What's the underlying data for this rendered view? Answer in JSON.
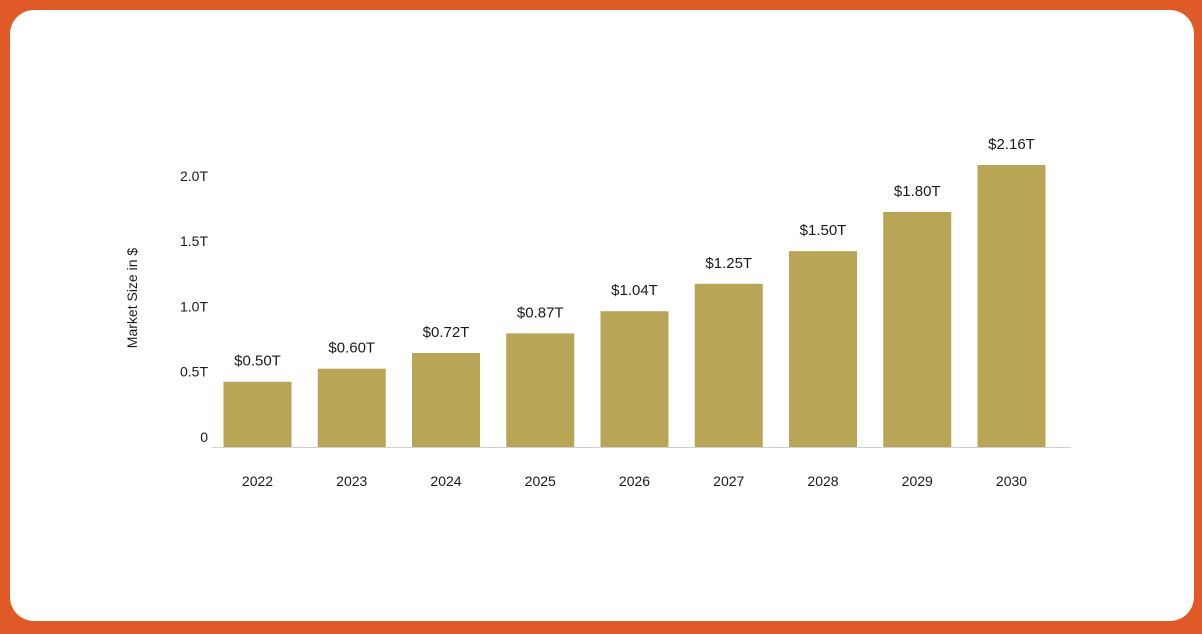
{
  "chart_data": {
    "type": "bar",
    "ylabel": "Market Size in $",
    "xlabel": "",
    "categories": [
      "2022",
      "2023",
      "2024",
      "2025",
      "2026",
      "2027",
      "2028",
      "2029",
      "2030"
    ],
    "values": [
      0.5,
      0.6,
      0.72,
      0.87,
      1.04,
      1.25,
      1.5,
      1.8,
      2.16
    ],
    "data_labels": [
      "$0.50T",
      "$0.60T",
      "$0.72T",
      "$0.87T",
      "$1.04T",
      "$1.25T",
      "$1.50T",
      "$1.80T",
      "$2.16T"
    ],
    "y_ticks": [
      0,
      0.5,
      1.0,
      1.5,
      2.0
    ],
    "y_tick_labels": [
      "0",
      "0.5T",
      "1.0T",
      "1.5T",
      "2.0T"
    ],
    "ylim": [
      0,
      2.16
    ],
    "grid": false,
    "legend": "none",
    "colors": {
      "bar": "#b8a656",
      "frame": "#e05a27",
      "background": "#ffffff",
      "baseline": "#d0d0d0"
    }
  }
}
